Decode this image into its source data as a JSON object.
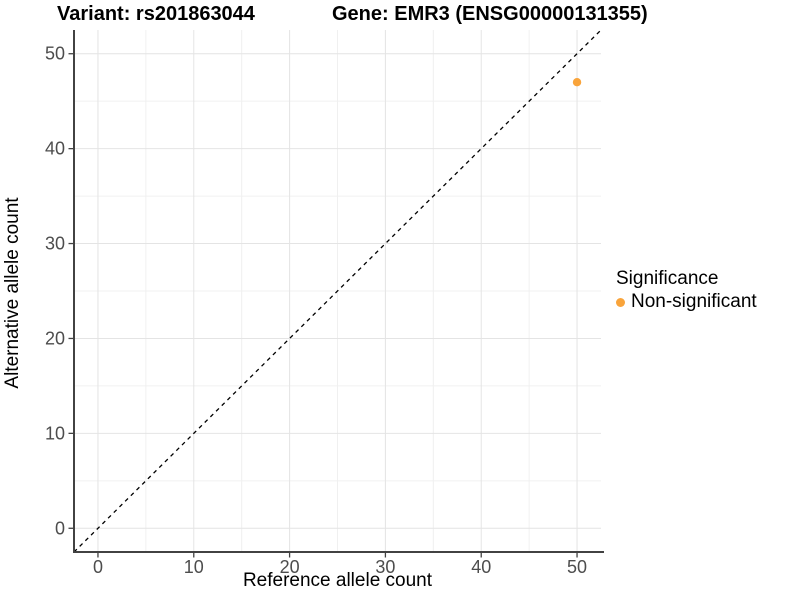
{
  "chart_data": {
    "type": "scatter",
    "titles": {
      "left": "Variant: rs201863044",
      "right": "Gene: EMR3 (ENSG00000131355)"
    },
    "xlabel": "Reference allele count",
    "ylabel": "Alternative allele count",
    "xlim": [
      -2.5,
      52.5
    ],
    "ylim": [
      -2.5,
      52.5
    ],
    "x_major_ticks": [
      0,
      10,
      20,
      30,
      40,
      50
    ],
    "y_major_ticks": [
      0,
      10,
      20,
      30,
      40,
      50
    ],
    "x_minor_ticks": [
      5,
      15,
      25,
      35,
      45
    ],
    "y_minor_ticks": [
      5,
      15,
      25,
      35,
      45
    ],
    "grid": true,
    "identity_line": {
      "style": "dashed",
      "from": [
        -2.5,
        -2.5
      ],
      "to": [
        52.5,
        52.5
      ]
    },
    "points": [
      {
        "x": 50,
        "y": 47,
        "series": "Non-significant"
      }
    ],
    "legend": {
      "title": "Significance",
      "position": "right",
      "items": [
        {
          "label": "Non-significant",
          "color": "#F9A43B"
        }
      ]
    },
    "style": {
      "point_color": "#F9A43B",
      "grid_major_color": "#e4e4e4",
      "grid_minor_color": "#f0f0f0",
      "axis_line_color": "#424242",
      "tick_label_color": "#4d4d4d",
      "identity_line_color": "#000000",
      "background": "#ffffff"
    }
  }
}
